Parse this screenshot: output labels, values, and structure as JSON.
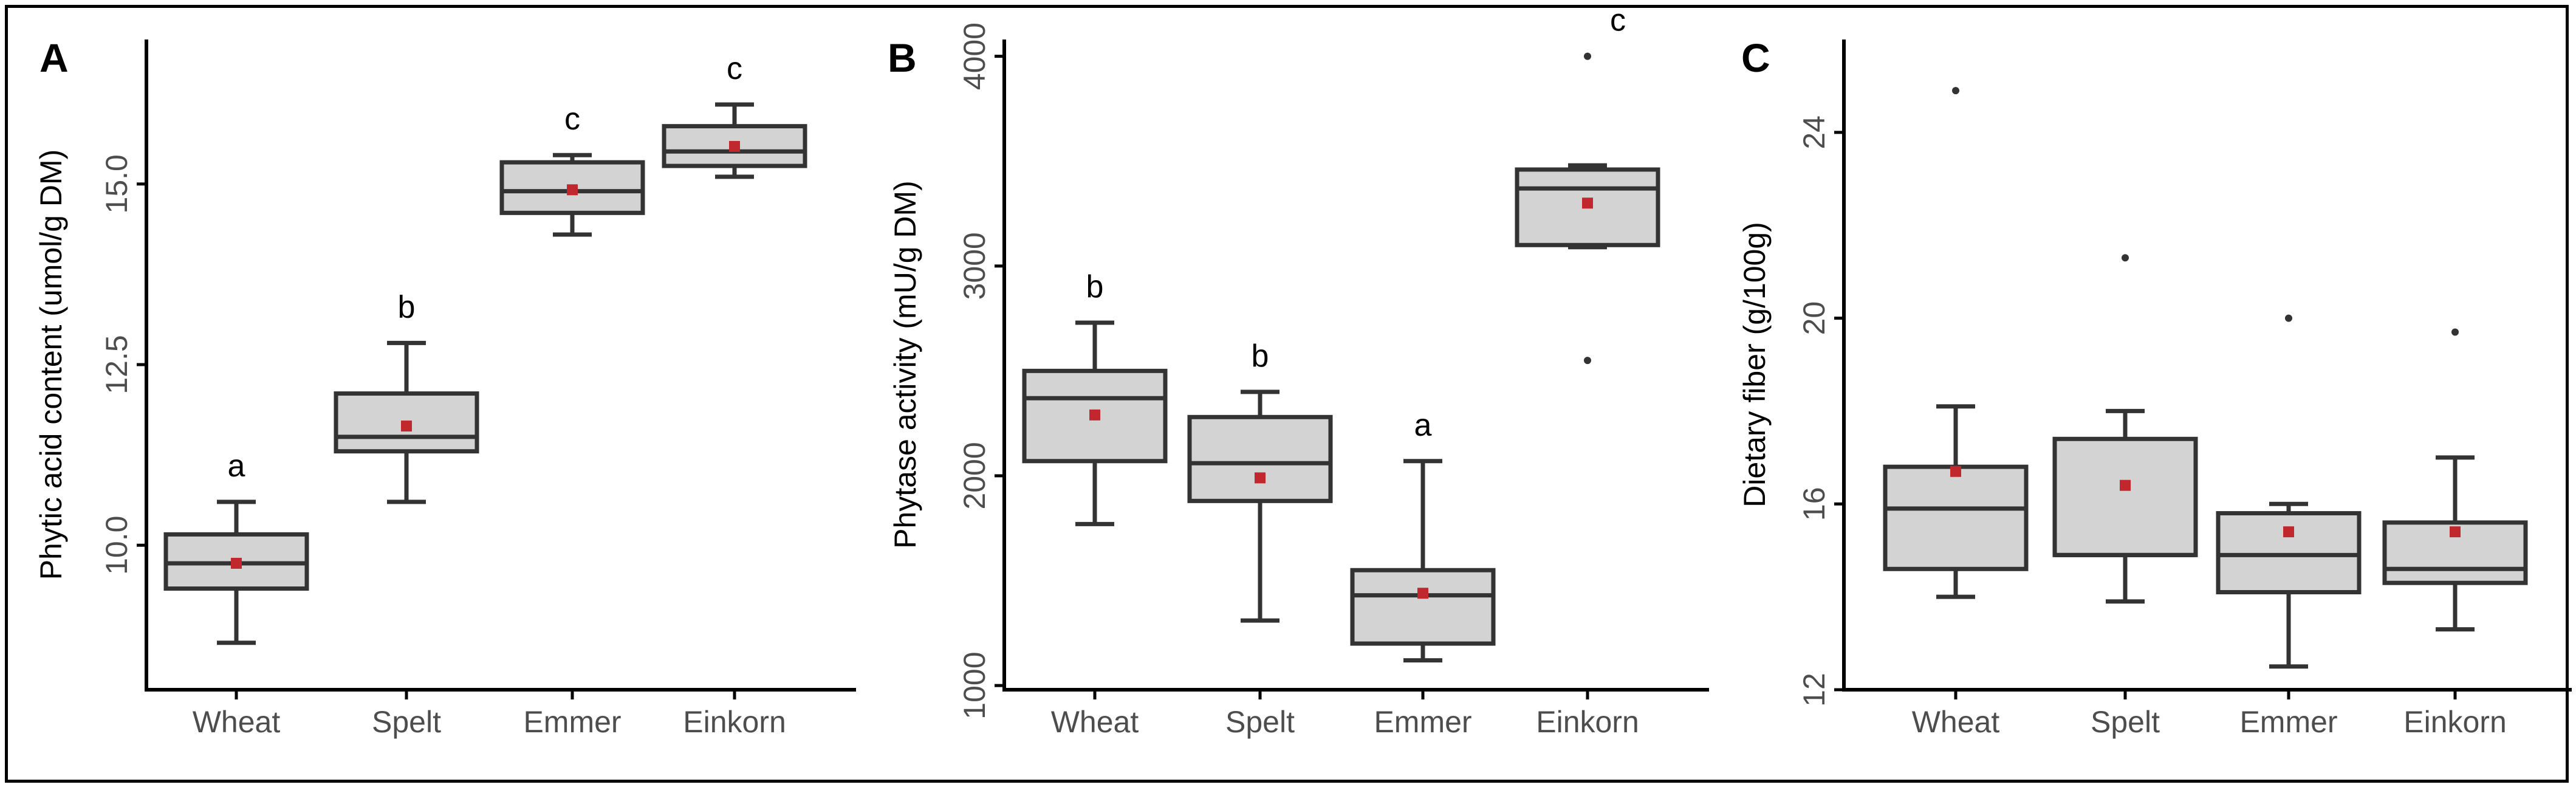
{
  "chart_data": [
    {
      "type": "box",
      "panel": "A",
      "title": "",
      "xlabel": "",
      "ylabel": "Phytic acid content (umol/g DM)",
      "ylim": [
        8.0,
        17.0
      ],
      "yticks": [
        10.0,
        12.5,
        15.0
      ],
      "ytick_labels": [
        "10.0",
        "12.5",
        "15.0"
      ],
      "categories": [
        "Wheat",
        "Spelt",
        "Emmer",
        "Einkorn"
      ],
      "boxes": [
        {
          "whisker_low": 8.65,
          "q1": 9.4,
          "median": 9.75,
          "q3": 10.15,
          "whisker_high": 10.6,
          "mean": 9.75,
          "outliers": [],
          "letter": "a"
        },
        {
          "whisker_low": 10.6,
          "q1": 11.3,
          "median": 11.5,
          "q3": 12.1,
          "whisker_high": 12.8,
          "mean": 11.65,
          "outliers": [],
          "letter": "b"
        },
        {
          "whisker_low": 14.3,
          "q1": 14.6,
          "median": 14.9,
          "q3": 15.3,
          "whisker_high": 15.4,
          "mean": 14.92,
          "outliers": [],
          "letter": "c"
        },
        {
          "whisker_low": 15.1,
          "q1": 15.25,
          "median": 15.45,
          "q3": 15.8,
          "whisker_high": 16.1,
          "mean": 15.52,
          "outliers": [],
          "letter": "c"
        }
      ]
    },
    {
      "type": "box",
      "panel": "B",
      "title": "",
      "xlabel": "",
      "ylabel": "Phytase activity (mU/g DM)",
      "ylim": [
        980,
        4080
      ],
      "yticks": [
        1000,
        2000,
        3000,
        4000
      ],
      "ytick_labels": [
        "1000",
        "2000",
        "3000",
        "4000"
      ],
      "categories": [
        "Wheat",
        "Spelt",
        "Emmer",
        "Einkorn"
      ],
      "boxes": [
        {
          "whisker_low": 1770,
          "q1": 2070,
          "median": 2370,
          "q3": 2500,
          "whisker_high": 2730,
          "mean": 2290,
          "outliers": [],
          "letter": "b"
        },
        {
          "whisker_low": 1310,
          "q1": 1880,
          "median": 2060,
          "q3": 2280,
          "whisker_high": 2400,
          "mean": 1990,
          "outliers": [],
          "letter": "b"
        },
        {
          "whisker_low": 1120,
          "q1": 1200,
          "median": 1430,
          "q3": 1550,
          "whisker_high": 2070,
          "mean": 1440,
          "outliers": [],
          "letter": "a"
        },
        {
          "whisker_low": 3090,
          "q1": 3100,
          "median": 3370,
          "q3": 3460,
          "whisker_high": 3480,
          "mean": 3300,
          "outliers": [
            2550,
            4000
          ],
          "letter": "c"
        }
      ]
    },
    {
      "type": "box",
      "panel": "C",
      "title": "",
      "xlabel": "",
      "ylabel": "Dietary fiber (g/100g)",
      "ylim": [
        12.0,
        26.0
      ],
      "yticks": [
        12,
        16,
        20,
        24
      ],
      "ytick_labels": [
        "12",
        "16",
        "20",
        "24"
      ],
      "categories": [
        "Wheat",
        "Spelt",
        "Emmer",
        "Einkorn"
      ],
      "boxes": [
        {
          "whisker_low": 14.0,
          "q1": 14.6,
          "median": 15.9,
          "q3": 16.8,
          "whisker_high": 18.1,
          "mean": 16.7,
          "outliers": [
            24.9
          ],
          "letter": ""
        },
        {
          "whisker_low": 13.9,
          "q1": 14.9,
          "median": 14.9,
          "q3": 17.4,
          "whisker_high": 18.0,
          "mean": 16.4,
          "outliers": [
            21.3
          ],
          "letter": ""
        },
        {
          "whisker_low": 12.5,
          "q1": 14.1,
          "median": 14.9,
          "q3": 15.8,
          "whisker_high": 16.0,
          "mean": 15.4,
          "outliers": [
            20.0
          ],
          "letter": ""
        },
        {
          "whisker_low": 13.3,
          "q1": 14.3,
          "median": 14.6,
          "q3": 15.6,
          "whisker_high": 17.0,
          "mean": 15.4,
          "outliers": [
            19.7
          ],
          "letter": ""
        }
      ]
    }
  ]
}
